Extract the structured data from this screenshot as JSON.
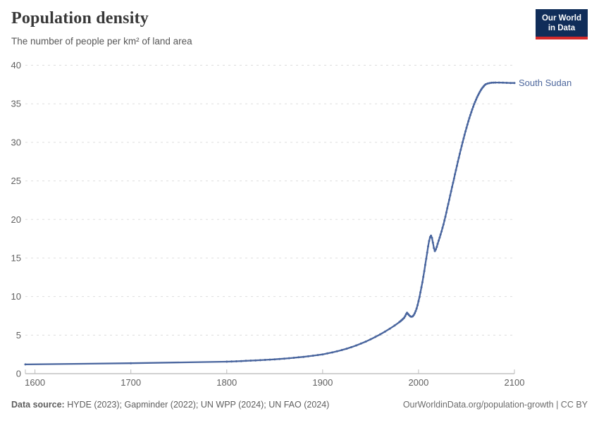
{
  "header": {
    "title": "Population density",
    "subtitle": "The number of people per km² of land area"
  },
  "logo": {
    "line1": "Our World",
    "line2": "in Data"
  },
  "footer": {
    "source_label": "Data source:",
    "sources": " HYDE (2023); Gapminder (2022); UN WPP (2024); UN FAO (2024)",
    "credit": "OurWorldinData.org/population-growth | CC BY"
  },
  "colors": {
    "line": "#49659e",
    "series_label": "#4c669c",
    "grid": "#dddddd",
    "axis": "#a3a3a3",
    "tick_mark": "#bbbbbb",
    "tick_text": "#606060",
    "logo_bg": "#102d59",
    "logo_red": "#d42a2a"
  },
  "chart_data": {
    "type": "line",
    "title": "Population density",
    "subtitle": "The number of people per km² of land area",
    "xlabel": "",
    "ylabel": "",
    "xlim": [
      1590,
      2100
    ],
    "ylim": [
      0,
      40
    ],
    "x_ticks": [
      1600,
      1700,
      1800,
      1900,
      2000,
      2100
    ],
    "y_ticks": [
      0,
      5,
      10,
      15,
      20,
      25,
      30,
      35,
      40
    ],
    "grid": "horizontal-dashed",
    "legend_position": "end-of-line-label",
    "series": [
      {
        "name": "South Sudan",
        "color": "#49659e",
        "points": [
          [
            1590,
            1.2
          ],
          [
            1700,
            1.35
          ],
          [
            1800,
            1.55
          ],
          [
            1805,
            1.57
          ],
          [
            1810,
            1.6
          ],
          [
            1815,
            1.63
          ],
          [
            1820,
            1.66
          ],
          [
            1825,
            1.69
          ],
          [
            1830,
            1.72
          ],
          [
            1835,
            1.75
          ],
          [
            1840,
            1.78
          ],
          [
            1845,
            1.82
          ],
          [
            1850,
            1.86
          ],
          [
            1855,
            1.9
          ],
          [
            1860,
            1.95
          ],
          [
            1865,
            2.0
          ],
          [
            1870,
            2.06
          ],
          [
            1875,
            2.12
          ],
          [
            1880,
            2.18
          ],
          [
            1885,
            2.25
          ],
          [
            1890,
            2.33
          ],
          [
            1895,
            2.41
          ],
          [
            1900,
            2.5
          ],
          [
            1905,
            2.62
          ],
          [
            1910,
            2.75
          ],
          [
            1915,
            2.9
          ],
          [
            1920,
            3.06
          ],
          [
            1925,
            3.24
          ],
          [
            1930,
            3.44
          ],
          [
            1935,
            3.66
          ],
          [
            1940,
            3.9
          ],
          [
            1945,
            4.16
          ],
          [
            1950,
            4.45
          ],
          [
            1955,
            4.76
          ],
          [
            1960,
            5.09
          ],
          [
            1965,
            5.45
          ],
          [
            1970,
            5.83
          ],
          [
            1975,
            6.24
          ],
          [
            1980,
            6.68
          ],
          [
            1981,
            6.78
          ],
          [
            1982,
            6.89
          ],
          [
            1983,
            7.0
          ],
          [
            1984,
            7.12
          ],
          [
            1985,
            7.25
          ],
          [
            1986,
            7.45
          ],
          [
            1987,
            7.7
          ],
          [
            1988,
            7.9
          ],
          [
            1989,
            7.75
          ],
          [
            1990,
            7.6
          ],
          [
            1991,
            7.48
          ],
          [
            1992,
            7.4
          ],
          [
            1993,
            7.38
          ],
          [
            1994,
            7.45
          ],
          [
            1995,
            7.6
          ],
          [
            1996,
            7.83
          ],
          [
            1997,
            8.1
          ],
          [
            1998,
            8.45
          ],
          [
            1999,
            8.9
          ],
          [
            2000,
            9.4
          ],
          [
            2001,
            9.95
          ],
          [
            2002,
            10.55
          ],
          [
            2003,
            11.2
          ],
          [
            2004,
            11.85
          ],
          [
            2005,
            12.55
          ],
          [
            2006,
            13.3
          ],
          [
            2007,
            14.1
          ],
          [
            2008,
            14.9
          ],
          [
            2009,
            15.7
          ],
          [
            2010,
            16.5
          ],
          [
            2011,
            17.2
          ],
          [
            2012,
            17.7
          ],
          [
            2013,
            17.9
          ],
          [
            2014,
            17.6
          ],
          [
            2015,
            17.0
          ],
          [
            2016,
            16.3
          ],
          [
            2017,
            15.9
          ],
          [
            2018,
            16.1
          ],
          [
            2019,
            16.45
          ],
          [
            2020,
            16.85
          ],
          [
            2021,
            17.25
          ],
          [
            2022,
            17.65
          ],
          [
            2023,
            18.05
          ],
          [
            2024,
            18.45
          ],
          [
            2025,
            18.9
          ],
          [
            2026,
            19.35
          ],
          [
            2027,
            19.85
          ],
          [
            2028,
            20.35
          ],
          [
            2029,
            20.9
          ],
          [
            2030,
            21.45
          ],
          [
            2031,
            22.0
          ],
          [
            2032,
            22.55
          ],
          [
            2033,
            23.1
          ],
          [
            2034,
            23.65
          ],
          [
            2035,
            24.2
          ],
          [
            2036,
            24.75
          ],
          [
            2037,
            25.3
          ],
          [
            2038,
            25.85
          ],
          [
            2039,
            26.4
          ],
          [
            2040,
            26.95
          ],
          [
            2041,
            27.48
          ],
          [
            2042,
            28.0
          ],
          [
            2043,
            28.52
          ],
          [
            2044,
            29.03
          ],
          [
            2045,
            29.53
          ],
          [
            2046,
            30.02
          ],
          [
            2047,
            30.5
          ],
          [
            2048,
            30.97
          ],
          [
            2049,
            31.43
          ],
          [
            2050,
            31.88
          ],
          [
            2051,
            32.31
          ],
          [
            2052,
            32.73
          ],
          [
            2053,
            33.14
          ],
          [
            2054,
            33.53
          ],
          [
            2055,
            33.91
          ],
          [
            2056,
            34.27
          ],
          [
            2057,
            34.61
          ],
          [
            2058,
            34.94
          ],
          [
            2059,
            35.25
          ],
          [
            2060,
            35.55
          ],
          [
            2061,
            35.83
          ],
          [
            2062,
            36.09
          ],
          [
            2063,
            36.33
          ],
          [
            2064,
            36.56
          ],
          [
            2065,
            36.77
          ],
          [
            2066,
            36.96
          ],
          [
            2067,
            37.13
          ],
          [
            2068,
            37.28
          ],
          [
            2069,
            37.41
          ],
          [
            2070,
            37.52
          ],
          [
            2072,
            37.62
          ],
          [
            2074,
            37.68
          ],
          [
            2076,
            37.72
          ],
          [
            2078,
            37.74
          ],
          [
            2080,
            37.75
          ],
          [
            2084,
            37.75
          ],
          [
            2088,
            37.73
          ],
          [
            2092,
            37.71
          ],
          [
            2096,
            37.7
          ],
          [
            2100,
            37.7
          ]
        ]
      }
    ]
  }
}
